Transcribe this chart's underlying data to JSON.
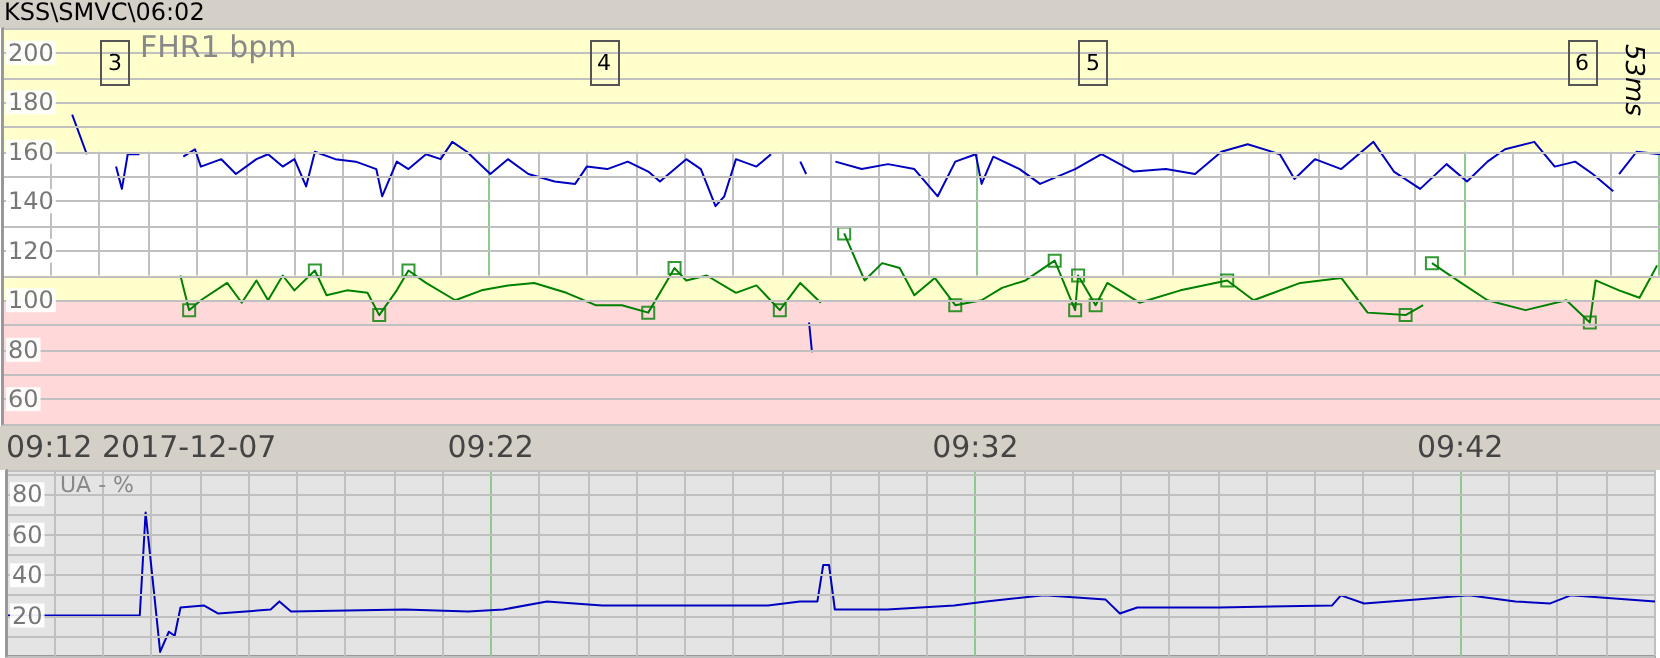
{
  "chart_data": [
    {
      "type": "line",
      "title": "KSS\\SMVC\\06:02",
      "ylabel": "FHR1 bpm",
      "annotations": [
        "3",
        "4",
        "5",
        "6",
        "53ms"
      ],
      "xlim": [
        9.2,
        9.767
      ],
      "xticks": [
        {
          "value": 9.2,
          "label": null
        },
        {
          "value": 9.2167,
          "label": null
        },
        {
          "value": 9.2333,
          "label": null
        },
        {
          "value": 9.25,
          "label": null
        },
        {
          "value": 9.2667,
          "label": null
        },
        {
          "value": 9.2833,
          "label": null
        },
        {
          "value": 9.3,
          "label": null
        },
        {
          "value": 9.3167,
          "label": null
        },
        {
          "value": 9.3333,
          "label": null
        },
        {
          "value": 9.35,
          "label": null
        },
        {
          "value": 9.3667,
          "label": null
        },
        {
          "value": 9.3833,
          "label": null
        },
        {
          "value": 9.4,
          "label": null
        },
        {
          "value": 9.4167,
          "label": null
        },
        {
          "value": 9.4333,
          "label": null
        },
        {
          "value": 9.45,
          "label": null
        },
        {
          "value": 9.4667,
          "label": null
        },
        {
          "value": 9.4833,
          "label": null
        },
        {
          "value": 9.5,
          "label": null
        },
        {
          "value": 9.5167,
          "label": null
        },
        {
          "value": 9.5333,
          "label": null
        },
        {
          "value": 9.55,
          "label": null
        },
        {
          "value": 9.5667,
          "label": null
        },
        {
          "value": 9.5833,
          "label": null
        },
        {
          "value": 9.6,
          "label": null
        },
        {
          "value": 9.6167,
          "label": null
        },
        {
          "value": 9.6333,
          "label": null
        },
        {
          "value": 9.65,
          "label": null
        },
        {
          "value": 9.6667,
          "label": null
        },
        {
          "value": 9.6833,
          "label": null
        },
        {
          "value": 9.7,
          "label": null
        },
        {
          "value": 9.7167,
          "label": null
        },
        {
          "value": 9.7333,
          "label": null
        },
        {
          "value": 9.75,
          "label": null
        }
      ],
      "ylim": [
        50,
        210
      ],
      "yticks": [
        {
          "value": 50,
          "label": null
        },
        60,
        {
          "value": 70,
          "label": null
        },
        80,
        {
          "value": 90,
          "label": null
        },
        100,
        {
          "value": 110,
          "label": null
        },
        120,
        {
          "value": 130,
          "label": null
        },
        140,
        {
          "value": 150,
          "label": null
        },
        160,
        {
          "value": 170,
          "label": null
        },
        180,
        {
          "value": 190,
          "label": null
        },
        200
      ],
      "tick_labels": "y",
      "grid": true,
      "marker": "none",
      "line_style": "solid",
      "bands": [
        {
          "axis": "y",
          "from": 50,
          "to": 100,
          "color": "#ffd9d9"
        },
        {
          "axis": "y",
          "from": 100,
          "to": 110,
          "color": "#ffffcc"
        },
        {
          "axis": "y",
          "from": 160,
          "to": 210,
          "color": "#ffffcc"
        }
      ],
      "series": [
        {
          "color": "#0000c0",
          "x": [
            9.224,
            9.229,
            9.23,
            9.239,
            9.241,
            9.243,
            9.247,
            9.25,
            9.262,
            9.266,
            9.268,
            9.275,
            9.28,
            9.287,
            9.291,
            9.296,
            9.3,
            9.304,
            9.307,
            9.314,
            9.321,
            9.328,
            9.33,
            9.335,
            9.339,
            9.345,
            9.35,
            9.354,
            9.359,
            9.367,
            9.373,
            9.38,
            9.389,
            9.396,
            9.4,
            9.407,
            9.414,
            9.421,
            9.425,
            9.434,
            9.439,
            9.444,
            9.447,
            9.451,
            9.458,
            9.463,
            9.464,
            9.473,
            9.475,
            9.4755,
            9.476,
            9.477,
            9.478,
            9.485,
            9.494,
            9.503,
            9.512,
            9.52,
            9.526,
            9.533,
            9.535,
            9.539,
            9.548,
            9.555,
            9.567,
            9.576,
            9.587,
            9.598,
            9.608,
            9.617,
            9.626,
            9.637,
            9.642,
            9.649,
            9.658,
            9.669,
            9.676,
            9.685,
            9.694,
            9.701,
            9.708,
            9.714,
            9.724,
            9.731,
            9.738,
            9.744,
            9.751,
            9.752,
            9.753,
            9.759,
            9.767
          ],
          "values": [
            175,
            159,
            null,
            154,
            145,
            159,
            159,
            null,
            158,
            161,
            154,
            157,
            151,
            157,
            159,
            154,
            157,
            146,
            160,
            157,
            156,
            153,
            142,
            156,
            153,
            159,
            157,
            164,
            160,
            151,
            157,
            151,
            148,
            147,
            154,
            153,
            156,
            152,
            148,
            157,
            153,
            138,
            142,
            157,
            154,
            159,
            null,
            156,
            151,
            null,
            91,
            79,
            null,
            156,
            153,
            155,
            153,
            142,
            156,
            159,
            147,
            158,
            153,
            147,
            153,
            159,
            152,
            153,
            151,
            160,
            163,
            159,
            149,
            157,
            153,
            164,
            152,
            145,
            155,
            148,
            156,
            161,
            164,
            154,
            156,
            151,
            144,
            null,
            151,
            160,
            159
          ]
        },
        {
          "color": "#008000",
          "x": [
            9.261,
            9.264,
            9.268,
            9.277,
            9.282,
            9.287,
            9.291,
            9.296,
            9.3,
            9.307,
            9.311,
            9.318,
            9.325,
            9.329,
            9.335,
            9.339,
            9.345,
            9.355,
            9.364,
            9.373,
            9.382,
            9.393,
            9.403,
            9.412,
            9.421,
            9.427,
            9.43,
            9.434,
            9.441,
            9.451,
            9.458,
            9.466,
            9.473,
            9.48,
            9.484,
            9.488,
            9.495,
            9.501,
            9.507,
            9.512,
            9.519,
            9.526,
            9.535,
            9.542,
            9.55,
            9.56,
            9.567,
            9.568,
            9.574,
            9.578,
            9.589,
            9.603,
            9.619,
            9.628,
            9.644,
            9.658,
            9.667,
            9.68,
            9.686,
            9.688,
            9.689,
            9.699,
            9.708,
            9.721,
            9.735,
            9.743,
            9.745,
            9.753,
            9.76,
            9.766
          ],
          "values": [
            110,
            96,
            100,
            107,
            99,
            108,
            100,
            110,
            104,
            112,
            102,
            104,
            103,
            94,
            104,
            112,
            107,
            100,
            104,
            106,
            107,
            103,
            98,
            98,
            95,
            107,
            113,
            108,
            110,
            103,
            106,
            96,
            107,
            99,
            null,
            127,
            108,
            115,
            113,
            102,
            109,
            98,
            100,
            105,
            108,
            116,
            96,
            110,
            98,
            107,
            99,
            104,
            108,
            100,
            107,
            109,
            95,
            94,
            98,
            null,
            115,
            107,
            100,
            96,
            100,
            91,
            108,
            104,
            101,
            114
          ]
        },
        {
          "type": "scatter",
          "marker": "square",
          "color": "#008000",
          "x": [
            9.264,
            9.307,
            9.329,
            9.339,
            9.421,
            9.43,
            9.466,
            9.488,
            9.526,
            9.56,
            9.567,
            9.568,
            9.574,
            9.619,
            9.68,
            9.689,
            9.743
          ],
          "values": [
            96,
            112,
            94,
            112,
            95,
            113,
            96,
            127,
            98,
            116,
            96,
            110,
            98,
            108,
            94,
            115,
            91
          ]
        }
      ]
    },
    {
      "type": "line",
      "ylabel": "UA - %",
      "xlim": [
        9.2,
        9.767
      ],
      "xticks": [
        {
          "value": 9.2,
          "label": "09:12 2017-12-07"
        },
        {
          "value": 9.2167,
          "label": null
        },
        {
          "value": 9.2333,
          "label": null
        },
        {
          "value": 9.25,
          "label": null
        },
        {
          "value": 9.2667,
          "label": null
        },
        {
          "value": 9.2833,
          "label": null
        },
        {
          "value": 9.3,
          "label": null
        },
        {
          "value": 9.3167,
          "label": null
        },
        {
          "value": 9.3333,
          "label": null
        },
        {
          "value": 9.35,
          "label": null
        },
        {
          "value": 9.3667,
          "label": "09:22"
        },
        {
          "value": 9.3833,
          "label": null
        },
        {
          "value": 9.4,
          "label": null
        },
        {
          "value": 9.4167,
          "label": null
        },
        {
          "value": 9.4333,
          "label": null
        },
        {
          "value": 9.45,
          "label": null
        },
        {
          "value": 9.4667,
          "label": null
        },
        {
          "value": 9.4833,
          "label": null
        },
        {
          "value": 9.5,
          "label": null
        },
        {
          "value": 9.5167,
          "label": null
        },
        {
          "value": 9.5333,
          "label": "09:32"
        },
        {
          "value": 9.55,
          "label": null
        },
        {
          "value": 9.5667,
          "label": null
        },
        {
          "value": 9.5833,
          "label": null
        },
        {
          "value": 9.6,
          "label": null
        },
        {
          "value": 9.6167,
          "label": null
        },
        {
          "value": 9.6333,
          "label": null
        },
        {
          "value": 9.65,
          "label": null
        },
        {
          "value": 9.6667,
          "label": null
        },
        {
          "value": 9.6833,
          "label": null
        },
        {
          "value": 9.7,
          "label": "09:42"
        },
        {
          "value": 9.7167,
          "label": null
        },
        {
          "value": 9.7333,
          "label": null
        },
        {
          "value": 9.75,
          "label": null
        }
      ],
      "ylim": [
        0,
        92
      ],
      "yticks": [
        {
          "value": 10,
          "label": null
        },
        20,
        {
          "value": 30,
          "label": null
        },
        40,
        {
          "value": 50,
          "label": null
        },
        60,
        {
          "value": 70,
          "label": null
        },
        80,
        {
          "value": 90,
          "label": null
        }
      ],
      "grid": true,
      "marker": "none",
      "line_style": "solid",
      "series": [
        {
          "color": "#0000c0",
          "x": [
            9.2,
            9.246,
            9.248,
            9.251,
            9.253,
            9.256,
            9.258,
            9.26,
            9.268,
            9.273,
            9.291,
            9.294,
            9.298,
            9.337,
            9.359,
            9.371,
            9.386,
            9.405,
            9.462,
            9.473,
            9.479,
            9.481,
            9.483,
            9.485,
            9.503,
            9.526,
            9.537,
            9.557,
            9.578,
            9.583,
            9.589,
            9.617,
            9.656,
            9.659,
            9.667,
            9.685,
            9.703,
            9.719,
            9.731,
            9.738,
            9.767
          ],
          "values": [
            20,
            20,
            71,
            30,
            2,
            12,
            10,
            24,
            25,
            21,
            23,
            27,
            22,
            23,
            22,
            23,
            27,
            25,
            25,
            27,
            27,
            45,
            45,
            23,
            23,
            25,
            27,
            30,
            28,
            21,
            24,
            24,
            25,
            30,
            26,
            28,
            30,
            27,
            26,
            30,
            27
          ]
        }
      ]
    }
  ]
}
